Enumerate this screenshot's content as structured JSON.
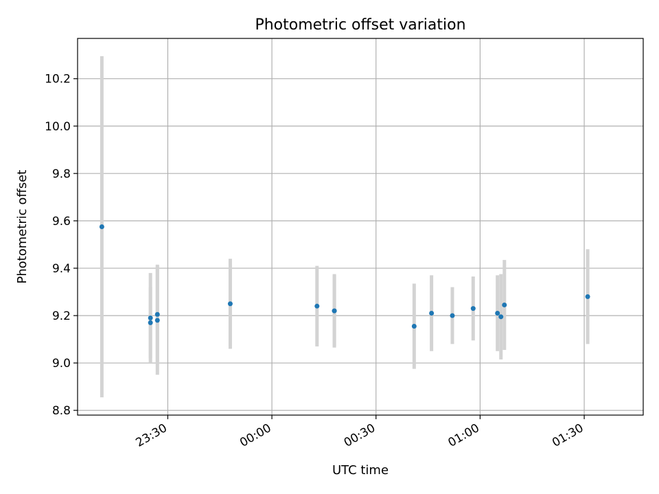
{
  "chart_data": {
    "type": "scatter",
    "title": "Photometric offset variation",
    "xlabel": "UTC time",
    "ylabel": "Photometric offset",
    "x_unit": "UTC time of day (HH:MM), observations span midnight",
    "xlim": [
      "23:04",
      "01:47"
    ],
    "ylim": [
      8.78,
      10.37
    ],
    "grid": true,
    "x_ticks": [
      "23:30",
      "00:00",
      "00:30",
      "01:00",
      "01:30"
    ],
    "y_ticks": [
      8.8,
      9.0,
      9.2,
      9.4,
      9.6,
      9.8,
      10.0,
      10.2
    ],
    "point_color": "#1f77b4",
    "errorbar_color": "#d3d3d3",
    "series": [
      {
        "points": [
          {
            "x": "23:11",
            "y": 9.575,
            "yerr": 0.72
          },
          {
            "x": "23:25",
            "y": 9.17,
            "yerr": 0.15
          },
          {
            "x": "23:25",
            "y": 9.19,
            "yerr": 0.19
          },
          {
            "x": "23:27",
            "y": 9.18,
            "yerr": 0.23
          },
          {
            "x": "23:27",
            "y": 9.205,
            "yerr": 0.21
          },
          {
            "x": "23:48",
            "y": 9.25,
            "yerr": 0.19
          },
          {
            "x": "00:13",
            "y": 9.24,
            "yerr": 0.17
          },
          {
            "x": "00:18",
            "y": 9.22,
            "yerr": 0.15
          },
          {
            "x": "00:18",
            "y": 9.22,
            "yerr": 0.155
          },
          {
            "x": "00:41",
            "y": 9.155,
            "yerr": 0.18
          },
          {
            "x": "00:46",
            "y": 9.21,
            "yerr": 0.16
          },
          {
            "x": "00:52",
            "y": 9.2,
            "yerr": 0.12
          },
          {
            "x": "00:58",
            "y": 9.23,
            "yerr": 0.135
          },
          {
            "x": "01:05",
            "y": 9.21,
            "yerr": 0.16
          },
          {
            "x": "01:06",
            "y": 9.195,
            "yerr": 0.18
          },
          {
            "x": "01:07",
            "y": 9.245,
            "yerr": 0.19
          },
          {
            "x": "01:31",
            "y": 9.28,
            "yerr": 0.2
          }
        ]
      }
    ]
  }
}
